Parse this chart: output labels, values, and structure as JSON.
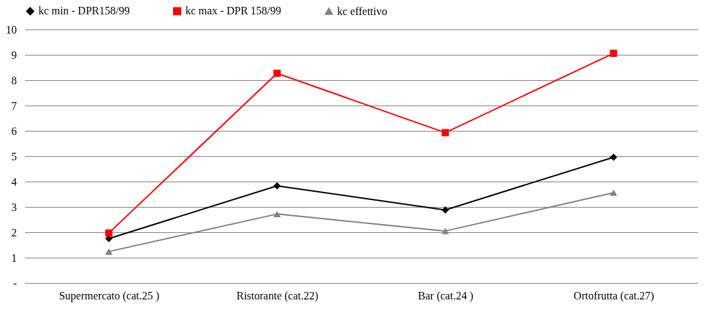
{
  "chart_data": {
    "type": "line",
    "categories": [
      "Supermercato (cat.25 )",
      "Ristorante (cat.22)",
      "Bar (cat.24  )",
      "Ortofrutta (cat.27)"
    ],
    "series": [
      {
        "name": "kc min - DPR158/99",
        "color": "#000000",
        "marker": "diamond",
        "values": [
          1.75,
          3.83,
          2.88,
          4.96
        ]
      },
      {
        "name": "kc max - DPR 158/99",
        "color": "#ff0000",
        "marker": "square",
        "values": [
          1.97,
          8.27,
          5.93,
          9.06
        ]
      },
      {
        "name": "kc effettivo",
        "color": "#808080",
        "marker": "triangle",
        "values": [
          1.24,
          2.72,
          2.05,
          3.56
        ]
      }
    ],
    "ylim": [
      0,
      10
    ],
    "yticks": [
      {
        "value": 0,
        "label": "-"
      },
      1,
      2,
      3,
      4,
      5,
      6,
      7,
      8,
      9,
      10
    ],
    "grid": "y",
    "legend": "top",
    "line_style": "solid"
  }
}
